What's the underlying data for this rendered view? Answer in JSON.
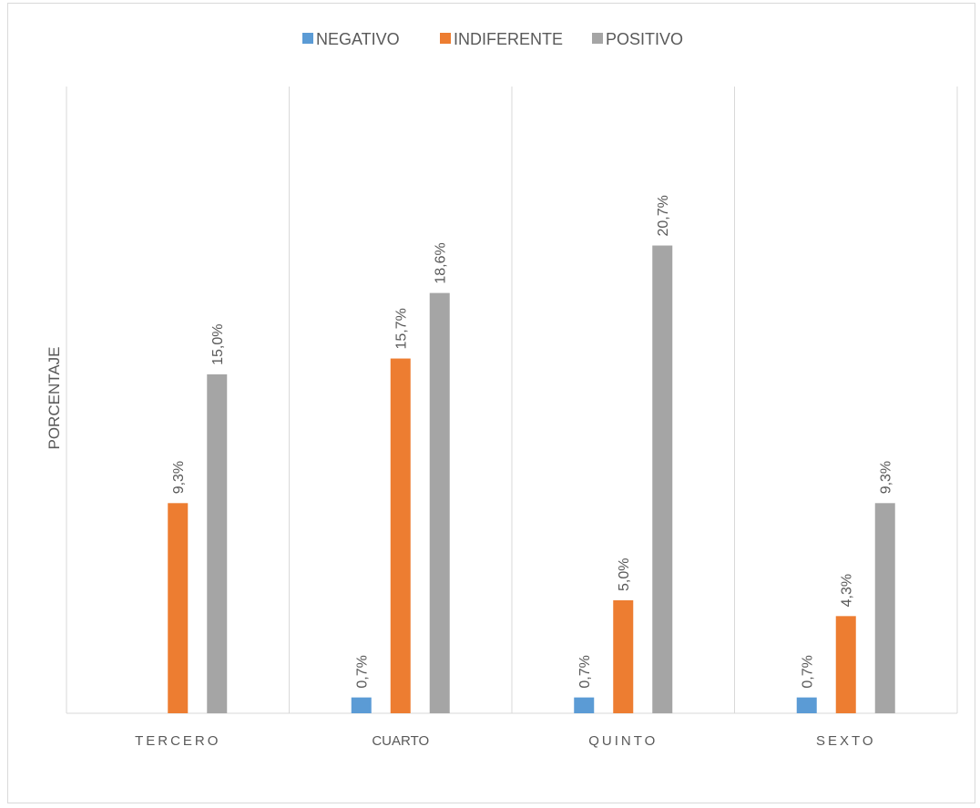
{
  "chart_data": {
    "type": "bar",
    "title": "",
    "xlabel": "",
    "ylabel": "PORCENTAJE",
    "categories": [
      "TERCERO",
      "CUARTO",
      "QUINTO",
      "SEXTO"
    ],
    "series": [
      {
        "name": "NEGATIVO",
        "color": "#5b9bd5",
        "values": [
          0,
          0.7,
          0.7,
          0.7
        ],
        "labels": [
          "",
          "0,7%",
          "0,7%",
          "0,7%"
        ]
      },
      {
        "name": "INDIFERENTE",
        "color": "#ed7d31",
        "values": [
          9.3,
          15.7,
          5.0,
          4.3
        ],
        "labels": [
          "9,3%",
          "15,7%",
          "5,0%",
          "4,3%"
        ]
      },
      {
        "name": "POSITIVO",
        "color": "#a5a5a5",
        "values": [
          15.0,
          18.6,
          20.7,
          9.3
        ],
        "labels": [
          "15,0%",
          "18,6%",
          "20,7%",
          "9,3%"
        ]
      }
    ],
    "ylim": [
      0,
      23.1
    ],
    "grid": "vertical-category-separators",
    "legend_position": "top"
  }
}
